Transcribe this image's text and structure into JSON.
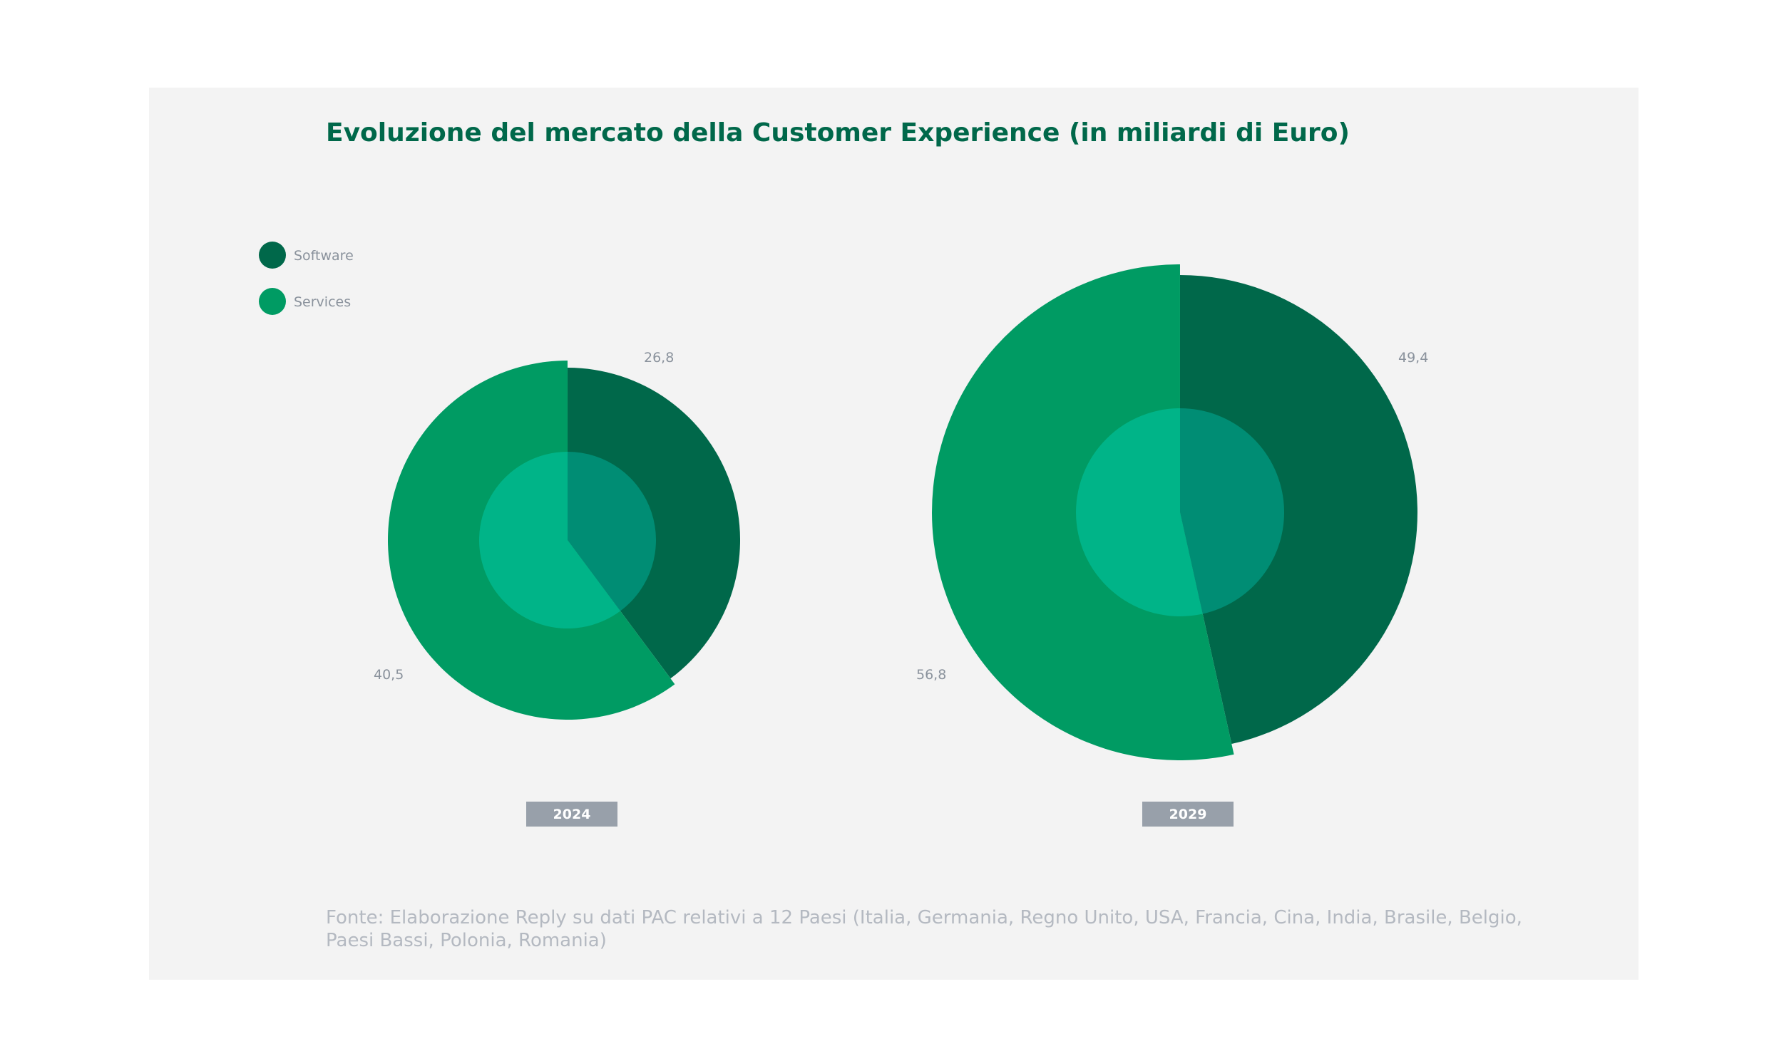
{
  "colors": {
    "software": "#00684a",
    "services": "#009b63",
    "inner_services": "#00b488",
    "inner_software": "#008d74",
    "title": "#00684a",
    "year_badge": "#98a0aa",
    "label": "#8a929c",
    "source": "#b4b9c1",
    "panel": "#f3f3f3"
  },
  "source_note": "Fonte: Elaborazione Reply su dati PAC relativi a 12 Paesi (Italia, Germania, Regno Unito, USA, Francia, Cina, India, Brasile, Belgio, Paesi Bassi, Polonia, Romania)",
  "chart_data": {
    "type": "pie",
    "title": "Evoluzione del mercato della Customer Experience (in miliardi di Euro)",
    "series": [
      {
        "name": "Software",
        "color_key": "software"
      },
      {
        "name": "Services",
        "color_key": "services"
      }
    ],
    "legend_position": "top-left",
    "charts": [
      {
        "year": "2024",
        "values": [
          26.8,
          40.5
        ],
        "labels": [
          "26,8",
          "40,5"
        ]
      },
      {
        "year": "2029",
        "values": [
          49.4,
          56.8
        ],
        "labels": [
          "49,4",
          "56,8"
        ]
      }
    ]
  }
}
